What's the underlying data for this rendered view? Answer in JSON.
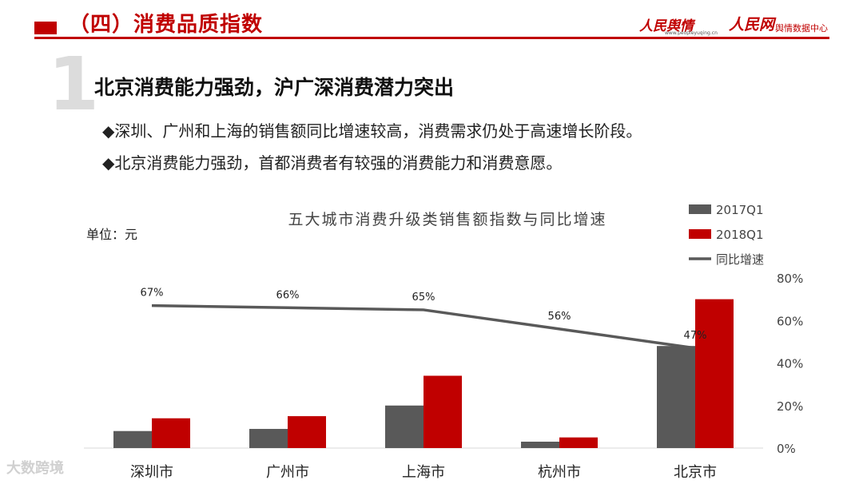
{
  "header": {
    "title": "（四）消费品质指数",
    "logo_main": "人民舆情",
    "logo_url": "www.peopleyuqing.cn",
    "logo_secondary": "人民网",
    "logo_secondary_sub": "舆情数据中心"
  },
  "section": {
    "number": "1",
    "heading": "北京消费能力强劲，沪广深消费潜力突出",
    "bullets": [
      "◆深圳、广州和上海的销售额同比增速较高，消费需求仍处于高速增长阶段。",
      "◆北京消费能力强劲，首都消费者有较强的消费能力和消费意愿。"
    ]
  },
  "unit_label": "单位：元",
  "watermark": "大数跨境",
  "colors": {
    "accent": "#c00000",
    "series_2017": "#595959",
    "series_2018": "#c00000",
    "line": "#595959"
  },
  "chart_data": {
    "type": "bar",
    "title": "五大城市消费升级类销售额指数与同比增速",
    "categories": [
      "深圳市",
      "广州市",
      "上海市",
      "杭州市",
      "北京市"
    ],
    "series": [
      {
        "name": "2017Q1",
        "type": "bar",
        "axis": "left",
        "values": [
          0.08,
          0.09,
          0.2,
          0.03,
          0.48
        ]
      },
      {
        "name": "2018Q1",
        "type": "bar",
        "axis": "left",
        "values": [
          0.14,
          0.15,
          0.34,
          0.05,
          0.7
        ]
      },
      {
        "name": "同比增速",
        "type": "line",
        "axis": "right",
        "values": [
          0.67,
          0.66,
          0.65,
          0.56,
          0.47
        ],
        "labels": [
          "67%",
          "66%",
          "65%",
          "56%",
          "47%"
        ]
      }
    ],
    "left_axis": {
      "ylim": [
        0,
        0.8
      ],
      "tick_labels": []
    },
    "right_axis": {
      "ylim": [
        0,
        0.8
      ],
      "ticks": [
        0,
        0.2,
        0.4,
        0.6,
        0.8
      ],
      "tick_labels": [
        "0%",
        "20%",
        "40%",
        "60%",
        "80%"
      ]
    },
    "legend_position": "top-right",
    "grid": false
  }
}
